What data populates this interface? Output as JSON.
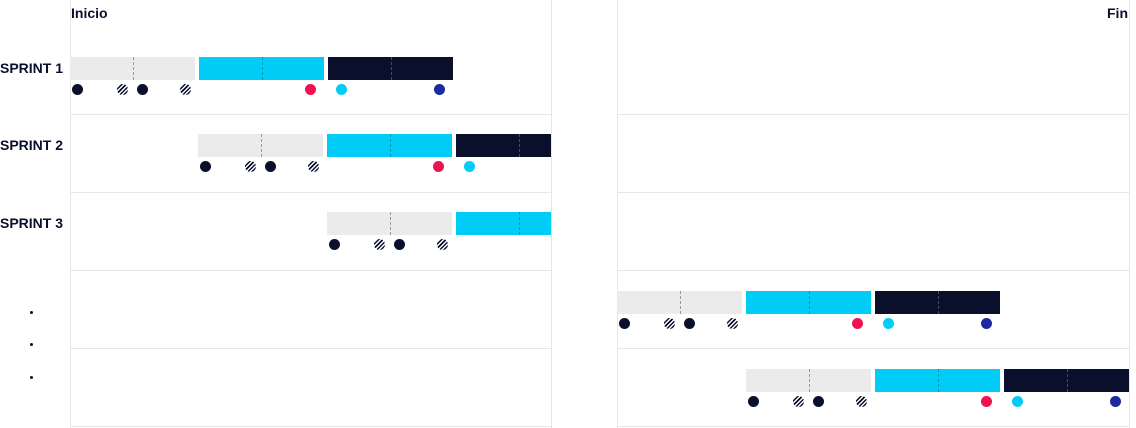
{
  "header": {
    "start_label": "Inicio",
    "end_label": "Fin"
  },
  "sprints": [
    {
      "label": "SPRINT 1"
    },
    {
      "label": "SPRINT 2"
    },
    {
      "label": "SPRINT 3"
    }
  ],
  "colors": {
    "grey_phase": "#ebebeb",
    "cyan_phase": "#00ccf5",
    "dark_phase": "#0a0f2c",
    "dot_dark": "#0a0f2c",
    "dot_red": "#f0114f",
    "dot_cyan": "#00ccf5",
    "dot_navy": "#1b2a9e",
    "grid_line": "#e6e6e6"
  }
}
